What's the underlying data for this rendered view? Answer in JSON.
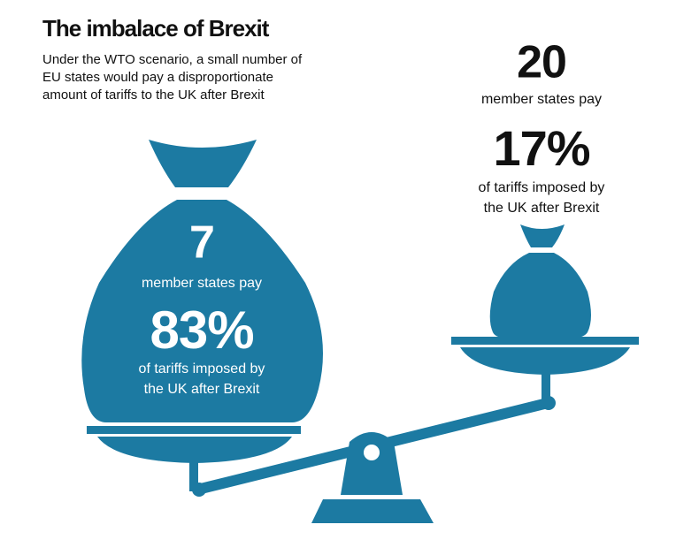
{
  "header": {
    "title": "The imbalace of Brexit",
    "subtitle": [
      "Under the WTO scenario, a small number of",
      "EU states would pay a disproportionate",
      "amount of tariffs to the UK after Brexit"
    ]
  },
  "groups": [
    {
      "count": "7",
      "count_label": "member states pay",
      "share": "83%",
      "share_label": [
        "of tariffs imposed by",
        "the UK after Brexit"
      ]
    },
    {
      "count": "20",
      "count_label": "member states pay",
      "share": "17%",
      "share_label": [
        "of tariffs imposed by",
        "the UK after Brexit"
      ]
    }
  ]
}
